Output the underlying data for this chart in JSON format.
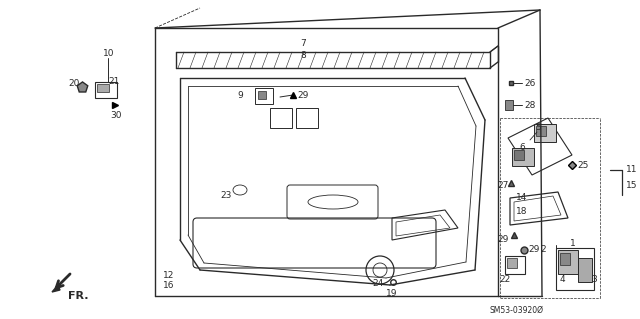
{
  "bg_color": "#ffffff",
  "line_color": "#2a2a2a",
  "fig_width": 6.4,
  "fig_height": 3.19,
  "dpi": 100,
  "watermark": "SM53-03920Ø",
  "fr_label": "FR."
}
